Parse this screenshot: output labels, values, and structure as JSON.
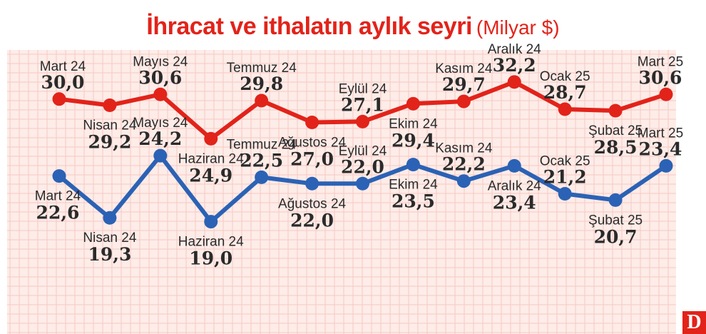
{
  "title": "İhracat ve ithalatın aylık seyri",
  "unit": "(Milyar $)",
  "logo": "D",
  "colors": {
    "export": "#e2231a",
    "import": "#2b62b5",
    "grid": "#f6c9c2",
    "background": "#fdece8"
  },
  "chart_data": {
    "type": "line",
    "title": "İhracat ve ithalatın aylık seyri (Milyar $)",
    "xlabel": "",
    "ylabel": "",
    "grid": true,
    "legend": "none",
    "categories": [
      "Mart 24",
      "Nisan 24",
      "Mayıs 24",
      "Haziran 24",
      "Temmuz 24",
      "Ağustos 24",
      "Eylül 24",
      "Ekim 24",
      "Kasım 24",
      "Aralık 24",
      "Ocak 25",
      "Şubat 25",
      "Mart 25"
    ],
    "series": [
      {
        "values": [
          30.0,
          29.2,
          30.6,
          24.9,
          29.8,
          27.0,
          27.1,
          29.4,
          29.7,
          32.2,
          28.7,
          28.5,
          30.6
        ],
        "value_labels": [
          "30,0",
          "29,2",
          "30,6",
          "24,9",
          "29,8",
          "27,0",
          "27,1",
          "29,4",
          "29,7",
          "32,2",
          "28,7",
          "28,5",
          "30,6"
        ],
        "color": "#e2231a"
      },
      {
        "values": [
          22.6,
          19.3,
          24.2,
          19.0,
          22.5,
          22.0,
          22.0,
          23.5,
          22.2,
          23.4,
          21.2,
          20.7,
          23.4
        ],
        "value_labels": [
          "22,6",
          "19,3",
          "24,2",
          "19,0",
          "22,5",
          "22,0",
          "22,0",
          "23,5",
          "22,2",
          "23,4",
          "21,2",
          "20,7",
          "23,4"
        ],
        "color": "#2b62b5"
      }
    ]
  }
}
